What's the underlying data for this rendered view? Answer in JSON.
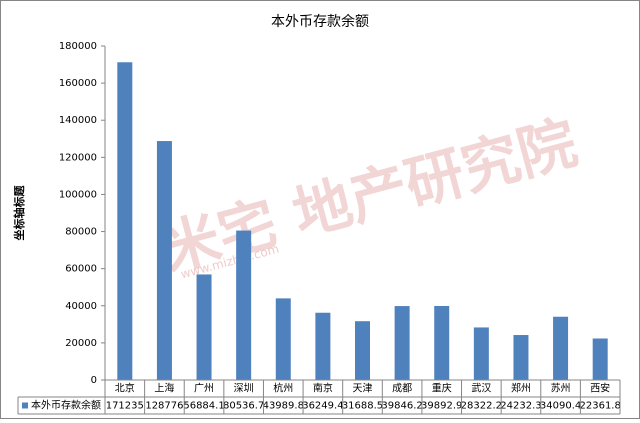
{
  "chart_data": {
    "type": "bar",
    "title": "本外币存款余额",
    "y_label": "坐标轴标题",
    "watermark": "米宅 地产研究院",
    "watermark_url": "www.mizhai.com",
    "categories": [
      "北京",
      "上海",
      "广州",
      "深圳",
      "杭州",
      "南京",
      "天津",
      "成都",
      "重庆",
      "武汉",
      "郑州",
      "苏州",
      "西安"
    ],
    "series": [
      {
        "name": "本外币存款余额",
        "color": "#4f81bd",
        "values": [
          171235,
          128776,
          56884.1,
          80536.7,
          43989.8,
          36249.4,
          31688.5,
          39846.2,
          39892.9,
          28322.2,
          24232.3,
          34090.4,
          22361.8
        ]
      }
    ],
    "ylim": [
      0,
      180000
    ],
    "yticks": [
      0,
      20000,
      40000,
      60000,
      80000,
      100000,
      120000,
      140000,
      160000,
      180000
    ],
    "grid": false,
    "data_table": true
  }
}
